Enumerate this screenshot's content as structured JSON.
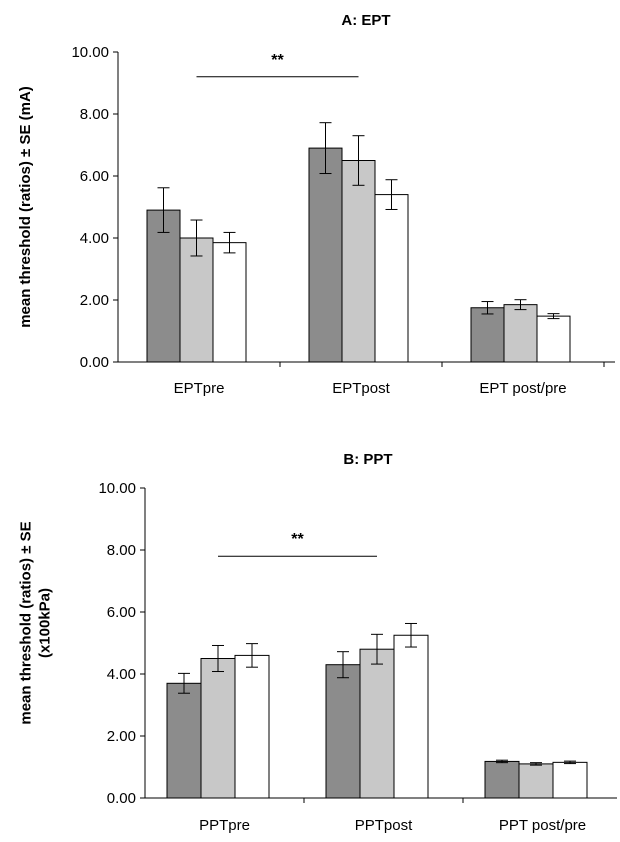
{
  "chart_data": [
    {
      "type": "bar",
      "title": "A: EPT",
      "ylabel_lines": [
        "mean threshold (ratios) ± SE (mA)"
      ],
      "categories": [
        "EPTpre",
        "EPTpost",
        "EPT post/pre"
      ],
      "ylim": [
        0,
        10
      ],
      "yticks": [
        "0.00",
        "2.00",
        "4.00",
        "6.00",
        "8.00",
        "10.00"
      ],
      "series": [
        {
          "color": "#8c8c8c",
          "values": [
            4.9,
            6.9,
            1.75
          ],
          "errors": [
            0.72,
            0.82,
            0.2
          ]
        },
        {
          "color": "#c8c8c8",
          "values": [
            4.0,
            6.5,
            1.85
          ],
          "errors": [
            0.58,
            0.8,
            0.16
          ]
        },
        {
          "color": "#ffffff",
          "values": [
            3.85,
            5.4,
            1.48
          ],
          "errors": [
            0.33,
            0.48,
            0.08
          ]
        }
      ],
      "significance": {
        "label": "**",
        "from_category": 0,
        "to_category": 1,
        "y": 9.2
      },
      "grid": false,
      "legend": "none"
    },
    {
      "type": "bar",
      "title": "B: PPT",
      "ylabel_lines": [
        "mean threshold (ratios) ± SE",
        "(x100kPa)"
      ],
      "categories": [
        "PPTpre",
        "PPTpost",
        "PPT post/pre"
      ],
      "ylim": [
        0,
        10
      ],
      "yticks": [
        "0.00",
        "2.00",
        "4.00",
        "6.00",
        "8.00",
        "10.00"
      ],
      "series": [
        {
          "color": "#8c8c8c",
          "values": [
            3.7,
            4.3,
            1.18
          ],
          "errors": [
            0.32,
            0.42,
            0.04
          ]
        },
        {
          "color": "#c8c8c8",
          "values": [
            4.5,
            4.8,
            1.1
          ],
          "errors": [
            0.42,
            0.48,
            0.04
          ]
        },
        {
          "color": "#ffffff",
          "values": [
            4.6,
            5.25,
            1.15
          ],
          "errors": [
            0.38,
            0.38,
            0.04
          ]
        }
      ],
      "significance": {
        "label": "**",
        "from_category": 0,
        "to_category": 1,
        "y": 7.8
      },
      "grid": false,
      "legend": "none"
    }
  ]
}
